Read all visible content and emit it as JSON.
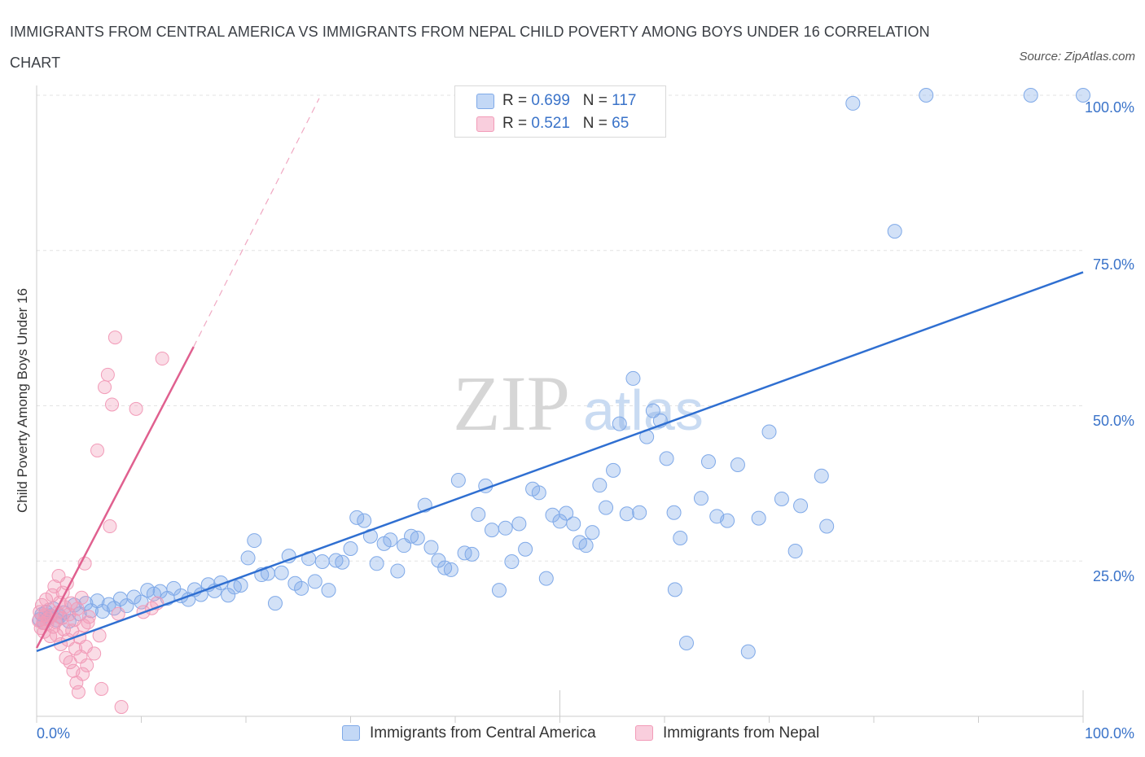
{
  "title": "IMMIGRANTS FROM CENTRAL AMERICA VS IMMIGRANTS FROM NEPAL CHILD POVERTY AMONG BOYS UNDER 16 CORRELATION CHART",
  "source": "Source: ZipAtlas.com",
  "watermark": "ZIPatlas",
  "legend": {
    "rows": [
      {
        "r_label": "R =",
        "r_value": "0.699",
        "n_label": "N =",
        "n_value": "117"
      },
      {
        "r_label": "R =",
        "r_value": "0.521",
        "n_label": "N =",
        "n_value": "65"
      }
    ]
  },
  "bottom_legend": [
    "Immigrants from Central America",
    "Immigrants from Nepal"
  ],
  "chart_data": {
    "type": "scatter",
    "title": "IMMIGRANTS FROM CENTRAL AMERICA VS IMMIGRANTS FROM NEPAL CHILD POVERTY AMONG BOYS UNDER 16 CORRELATION CHART",
    "xlabel": "",
    "ylabel": "Child Poverty Among Boys Under 16",
    "xlim": [
      0,
      100
    ],
    "ylim": [
      0,
      100
    ],
    "x_tick_labels": [
      "0.0%",
      "100.0%"
    ],
    "y_tick_labels": [
      {
        "value": 100,
        "label": "100.0%"
      },
      {
        "value": 75,
        "label": "75.0%"
      },
      {
        "value": 50,
        "label": "50.0%"
      },
      {
        "value": 25,
        "label": "25.0%"
      }
    ],
    "colors": {
      "central_america": "#7fa9e8",
      "nepal": "#f29bb8",
      "ca_line": "#2f6fd1",
      "np_line": "#e0608f",
      "axis_text": "#3a73c9"
    },
    "series": [
      {
        "name": "Immigrants from Central America",
        "r": 0.699,
        "n": 117,
        "trend": {
          "x0": 0,
          "y0": 10.5,
          "x1": 100,
          "y1": 71.5
        },
        "points": [
          [
            0.3,
            15.6
          ],
          [
            0.5,
            16.4
          ],
          [
            0.7,
            15.1
          ],
          [
            0.9,
            16.8
          ],
          [
            1.1,
            15.9
          ],
          [
            1.3,
            16.2
          ],
          [
            1.6,
            17.3
          ],
          [
            1.9,
            15.5
          ],
          [
            2.2,
            16.1
          ],
          [
            2.6,
            16.7
          ],
          [
            3.1,
            15.3
          ],
          [
            3.6,
            17.9
          ],
          [
            4.1,
            16.5
          ],
          [
            4.7,
            18.2
          ],
          [
            5.2,
            17.0
          ],
          [
            5.8,
            18.6
          ],
          [
            6.3,
            16.9
          ],
          [
            6.9,
            18.0
          ],
          [
            7.4,
            17.4
          ],
          [
            8.0,
            18.9
          ],
          [
            8.6,
            17.8
          ],
          [
            9.3,
            19.2
          ],
          [
            10.0,
            18.4
          ],
          [
            10.6,
            20.3
          ],
          [
            11.2,
            19.7
          ],
          [
            11.8,
            20.1
          ],
          [
            12.5,
            19.0
          ],
          [
            13.1,
            20.6
          ],
          [
            13.8,
            19.4
          ],
          [
            14.5,
            18.8
          ],
          [
            15.1,
            20.4
          ],
          [
            15.7,
            19.6
          ],
          [
            16.4,
            21.2
          ],
          [
            17.0,
            20.2
          ],
          [
            17.6,
            21.5
          ],
          [
            18.3,
            19.5
          ],
          [
            18.9,
            20.8
          ],
          [
            19.5,
            21.1
          ],
          [
            20.2,
            25.5
          ],
          [
            20.8,
            28.3
          ],
          [
            21.5,
            22.8
          ],
          [
            22.1,
            23.0
          ],
          [
            22.8,
            18.2
          ],
          [
            23.4,
            23.1
          ],
          [
            24.1,
            25.8
          ],
          [
            24.7,
            21.4
          ],
          [
            25.3,
            20.6
          ],
          [
            26.0,
            25.4
          ],
          [
            26.6,
            21.7
          ],
          [
            27.3,
            24.9
          ],
          [
            27.9,
            20.3
          ],
          [
            28.6,
            25.1
          ],
          [
            29.2,
            24.8
          ],
          [
            30.0,
            27.0
          ],
          [
            30.6,
            32.0
          ],
          [
            31.3,
            31.5
          ],
          [
            31.9,
            29.0
          ],
          [
            32.5,
            24.6
          ],
          [
            33.2,
            27.8
          ],
          [
            33.8,
            28.4
          ],
          [
            34.5,
            23.4
          ],
          [
            35.1,
            27.5
          ],
          [
            35.8,
            29.0
          ],
          [
            36.4,
            28.7
          ],
          [
            37.1,
            34.0
          ],
          [
            37.7,
            27.2
          ],
          [
            38.4,
            25.1
          ],
          [
            39.0,
            23.9
          ],
          [
            39.6,
            23.6
          ],
          [
            40.3,
            38.0
          ],
          [
            40.9,
            26.3
          ],
          [
            41.6,
            26.1
          ],
          [
            42.2,
            32.5
          ],
          [
            42.9,
            37.1
          ],
          [
            43.5,
            30.0
          ],
          [
            44.2,
            20.3
          ],
          [
            44.8,
            30.3
          ],
          [
            45.4,
            24.9
          ],
          [
            46.1,
            31.0
          ],
          [
            46.7,
            26.9
          ],
          [
            47.4,
            36.6
          ],
          [
            48.0,
            36.0
          ],
          [
            48.7,
            22.2
          ],
          [
            49.3,
            32.4
          ],
          [
            50.0,
            31.4
          ],
          [
            50.6,
            32.7
          ],
          [
            51.3,
            31.0
          ],
          [
            51.9,
            28.0
          ],
          [
            52.5,
            27.5
          ],
          [
            53.1,
            29.6
          ],
          [
            53.8,
            37.2
          ],
          [
            54.4,
            33.6
          ],
          [
            55.1,
            39.6
          ],
          [
            55.7,
            47.1
          ],
          [
            56.4,
            32.6
          ],
          [
            57.0,
            54.4
          ],
          [
            57.6,
            32.8
          ],
          [
            58.3,
            45.0
          ],
          [
            58.9,
            49.2
          ],
          [
            59.6,
            47.6
          ],
          [
            60.2,
            41.5
          ],
          [
            60.9,
            32.8
          ],
          [
            61.5,
            28.7
          ],
          [
            62.1,
            11.8
          ],
          [
            63.5,
            35.1
          ],
          [
            64.2,
            41.0
          ],
          [
            65.0,
            32.2
          ],
          [
            66.0,
            31.5
          ],
          [
            67.0,
            40.5
          ],
          [
            69.0,
            31.9
          ],
          [
            70.0,
            45.8
          ],
          [
            71.2,
            35.0
          ],
          [
            72.5,
            26.6
          ],
          [
            73.0,
            33.9
          ],
          [
            75.0,
            38.7
          ],
          [
            78.0,
            98.7
          ],
          [
            82.0,
            78.1
          ],
          [
            85.0,
            100.0
          ],
          [
            95.0,
            100.0
          ],
          [
            100.0,
            100.0
          ],
          [
            75.5,
            30.6
          ],
          [
            68.0,
            10.4
          ],
          [
            61.0,
            20.4
          ]
        ]
      },
      {
        "name": "Immigrants from Nepal",
        "r": 0.521,
        "n": 65,
        "trend": {
          "x0": 0,
          "y0": 11.0,
          "x1": 15,
          "y1": 59.5
        },
        "trend_dashed_extension": {
          "x0": 15,
          "y0": 59.5,
          "x1": 27,
          "y1": 99.5
        },
        "points": [
          [
            0.2,
            15.4
          ],
          [
            0.3,
            16.8
          ],
          [
            0.4,
            14.2
          ],
          [
            0.5,
            17.9
          ],
          [
            0.6,
            15.0
          ],
          [
            0.7,
            13.6
          ],
          [
            0.8,
            16.3
          ],
          [
            0.9,
            18.8
          ],
          [
            1.0,
            14.9
          ],
          [
            1.1,
            15.7
          ],
          [
            1.2,
            17.2
          ],
          [
            1.3,
            12.9
          ],
          [
            1.4,
            16.1
          ],
          [
            1.5,
            19.5
          ],
          [
            1.6,
            14.4
          ],
          [
            1.7,
            20.9
          ],
          [
            1.8,
            15.2
          ],
          [
            1.9,
            13.1
          ],
          [
            2.0,
            16.7
          ],
          [
            2.1,
            22.6
          ],
          [
            2.2,
            18.3
          ],
          [
            2.3,
            11.6
          ],
          [
            2.4,
            15.8
          ],
          [
            2.5,
            19.9
          ],
          [
            2.6,
            14.0
          ],
          [
            2.7,
            17.6
          ],
          [
            2.8,
            9.4
          ],
          [
            2.9,
            21.4
          ],
          [
            3.0,
            12.3
          ],
          [
            3.1,
            16.4
          ],
          [
            3.2,
            8.7
          ],
          [
            3.3,
            18.2
          ],
          [
            3.4,
            13.8
          ],
          [
            3.5,
            7.3
          ],
          [
            3.6,
            15.5
          ],
          [
            3.7,
            10.9
          ],
          [
            3.8,
            5.4
          ],
          [
            3.9,
            17.3
          ],
          [
            4.0,
            3.9
          ],
          [
            4.1,
            12.7
          ],
          [
            4.2,
            9.6
          ],
          [
            4.3,
            19.1
          ],
          [
            4.4,
            6.8
          ],
          [
            4.5,
            14.6
          ],
          [
            4.6,
            24.6
          ],
          [
            4.7,
            11.2
          ],
          [
            4.8,
            8.2
          ],
          [
            4.9,
            15.1
          ],
          [
            5.0,
            16.0
          ],
          [
            5.5,
            10.1
          ],
          [
            5.8,
            42.8
          ],
          [
            6.0,
            13.0
          ],
          [
            6.2,
            4.4
          ],
          [
            6.5,
            53.0
          ],
          [
            6.8,
            55.0
          ],
          [
            7.0,
            30.6
          ],
          [
            7.2,
            50.2
          ],
          [
            7.5,
            61.0
          ],
          [
            7.8,
            16.5
          ],
          [
            8.1,
            1.5
          ],
          [
            9.5,
            49.5
          ],
          [
            10.2,
            16.8
          ],
          [
            11.0,
            17.4
          ],
          [
            11.5,
            18.2
          ],
          [
            12.0,
            57.6
          ]
        ]
      }
    ]
  }
}
